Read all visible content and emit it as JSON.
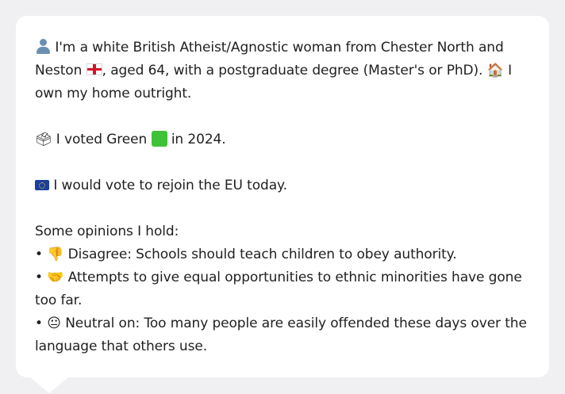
{
  "message": {
    "intro_a": "I'm a white British Atheist/Agnostic woman from Chester North and Neston",
    "intro_b": ", aged 64, with a postgraduate degree (Master's or PhD).",
    "intro_c": "I own my home outright.",
    "vote_a": "I voted Green",
    "vote_b": "in 2024.",
    "eu": "I would vote to rejoin the EU today.",
    "opinions_heading": "Some opinions I hold:",
    "opinions": [
      {
        "bullet": "•",
        "emoji": "👎",
        "text": "Disagree: Schools should teach children to obey authority."
      },
      {
        "bullet": "•",
        "emoji": "🤝",
        "text": "Attempts to give equal opportunities to ethnic minorities have gone too far."
      },
      {
        "bullet": "•",
        "emoji": "😐",
        "text": "Neutral on: Too many people are easily offended these days over the language that others use."
      }
    ]
  },
  "icons": {
    "person": "person-icon",
    "england_flag": "england-flag-icon",
    "house": "🏠",
    "ballot": "🗳",
    "green_square": "green-square-icon",
    "eu_flag": "eu-flag-icon"
  },
  "colors": {
    "background": "#f0f0f2",
    "bubble": "#ffffff",
    "text": "#1f1f1f",
    "green": "#3fc238",
    "eu_blue": "#1b3f9c"
  }
}
